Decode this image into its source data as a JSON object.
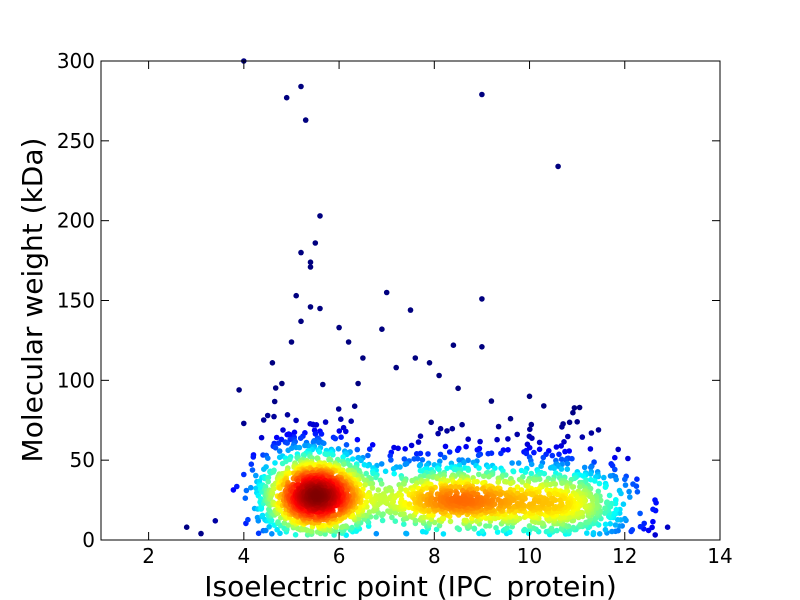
{
  "chart_data": {
    "type": "scatter",
    "title": "",
    "xlabel": "Isoelectric point (IPC_protein)",
    "ylabel": "Molecular weight (kDa)",
    "xlim": [
      1,
      14
    ],
    "ylim": [
      0,
      300
    ],
    "xticks": [
      2,
      4,
      6,
      8,
      10,
      12,
      14
    ],
    "yticks": [
      0,
      50,
      100,
      150,
      200,
      250,
      300
    ],
    "grid": false,
    "legend": "none",
    "color_scale": [
      "#00007f",
      "#0000ff",
      "#007fff",
      "#00ffff",
      "#7fff7f",
      "#ffff00",
      "#ff7f00",
      "#ff0000",
      "#7f0000"
    ],
    "density_clusters": [
      {
        "center_x": 5.5,
        "center_y": 28,
        "spread_x": 0.55,
        "spread_y": 14,
        "count": 1400
      },
      {
        "center_x": 8.5,
        "center_y": 25,
        "spread_x": 1.1,
        "spread_y": 12,
        "count": 900
      },
      {
        "center_x": 10.8,
        "center_y": 22,
        "spread_x": 0.7,
        "spread_y": 13,
        "count": 500
      }
    ],
    "outliers": [
      {
        "x": 4.0,
        "y": 300
      },
      {
        "x": 5.2,
        "y": 284
      },
      {
        "x": 4.9,
        "y": 277
      },
      {
        "x": 9.0,
        "y": 279
      },
      {
        "x": 5.3,
        "y": 263
      },
      {
        "x": 10.6,
        "y": 234
      },
      {
        "x": 5.6,
        "y": 203
      },
      {
        "x": 5.5,
        "y": 186
      },
      {
        "x": 5.2,
        "y": 180
      },
      {
        "x": 5.4,
        "y": 174
      },
      {
        "x": 5.4,
        "y": 171
      },
      {
        "x": 7.0,
        "y": 155
      },
      {
        "x": 5.1,
        "y": 153
      },
      {
        "x": 9.0,
        "y": 151
      },
      {
        "x": 7.5,
        "y": 144
      },
      {
        "x": 5.4,
        "y": 146
      },
      {
        "x": 5.6,
        "y": 145
      },
      {
        "x": 5.2,
        "y": 137
      },
      {
        "x": 6.0,
        "y": 133
      },
      {
        "x": 6.9,
        "y": 132
      },
      {
        "x": 9.0,
        "y": 121
      },
      {
        "x": 8.4,
        "y": 122
      },
      {
        "x": 4.6,
        "y": 111
      },
      {
        "x": 3.9,
        "y": 94
      },
      {
        "x": 4.0,
        "y": 73
      },
      {
        "x": 4.0,
        "y": 41
      },
      {
        "x": 2.8,
        "y": 8
      },
      {
        "x": 3.1,
        "y": 4
      },
      {
        "x": 3.4,
        "y": 12
      },
      {
        "x": 12.9,
        "y": 8
      },
      {
        "x": 12.5,
        "y": 6
      },
      {
        "x": 12.4,
        "y": 7
      },
      {
        "x": 12.0,
        "y": 38
      },
      {
        "x": 11.3,
        "y": 67
      },
      {
        "x": 10.3,
        "y": 84
      },
      {
        "x": 10.0,
        "y": 90
      },
      {
        "x": 9.2,
        "y": 87
      },
      {
        "x": 8.5,
        "y": 95
      },
      {
        "x": 7.6,
        "y": 114
      },
      {
        "x": 7.2,
        "y": 108
      },
      {
        "x": 6.5,
        "y": 114
      },
      {
        "x": 6.2,
        "y": 124
      },
      {
        "x": 5.0,
        "y": 124
      },
      {
        "x": 4.8,
        "y": 98
      },
      {
        "x": 4.5,
        "y": 78
      },
      {
        "x": 11.0,
        "y": 74
      },
      {
        "x": 9.6,
        "y": 76
      },
      {
        "x": 8.1,
        "y": 103
      },
      {
        "x": 7.9,
        "y": 111
      },
      {
        "x": 6.4,
        "y": 98
      }
    ]
  }
}
